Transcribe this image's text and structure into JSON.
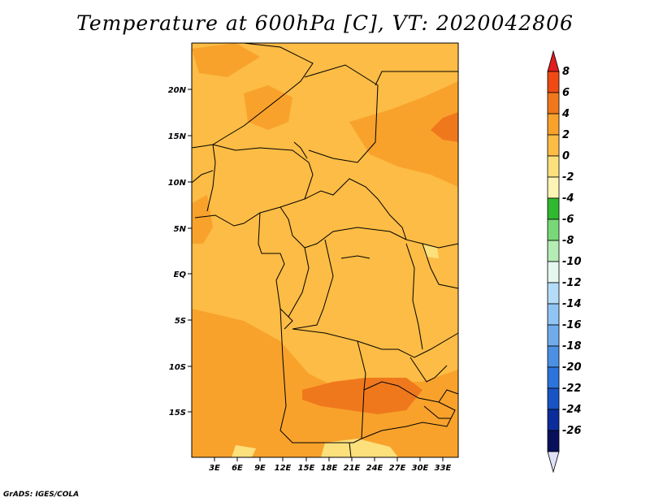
{
  "title": "Temperature at 600hPa [C], VT: 2020042806",
  "credit": "GrADS: IGES/COLA",
  "map": {
    "lat_ticks": [
      "20N",
      "15N",
      "10N",
      "5N",
      "EQ",
      "5S",
      "10S",
      "15S"
    ],
    "lon_ticks": [
      "3E",
      "6E",
      "9E",
      "12E",
      "15E",
      "18E",
      "21E",
      "24E",
      "27E",
      "30E",
      "33E"
    ],
    "fill_colors": {
      "zero_to_two": "#fcbc45",
      "two_to_four": "#f8a22c",
      "four_to_six": "#f0781c",
      "minus_two_to_zero": "#fce07c",
      "border": "#000000"
    }
  },
  "colorbar": {
    "levels": [
      "8",
      "6",
      "4",
      "2",
      "0",
      "-2",
      "-4",
      "-6",
      "-8",
      "-10",
      "-12",
      "-14",
      "-16",
      "-18",
      "-20",
      "-22",
      "-24",
      "-26"
    ],
    "colors": [
      "#e01c1c",
      "#f04a14",
      "#f0781c",
      "#f8a22c",
      "#fcbc45",
      "#fce07c",
      "#fcf4b4",
      "#30b830",
      "#78d878",
      "#b4ecb4",
      "#e4f8f0",
      "#b4dcf8",
      "#90c4f4",
      "#70acec",
      "#4c90e4",
      "#2c74dc",
      "#1854c4",
      "#0c2c9c",
      "#08105c"
    ],
    "under_color": "#e0e0f8"
  }
}
